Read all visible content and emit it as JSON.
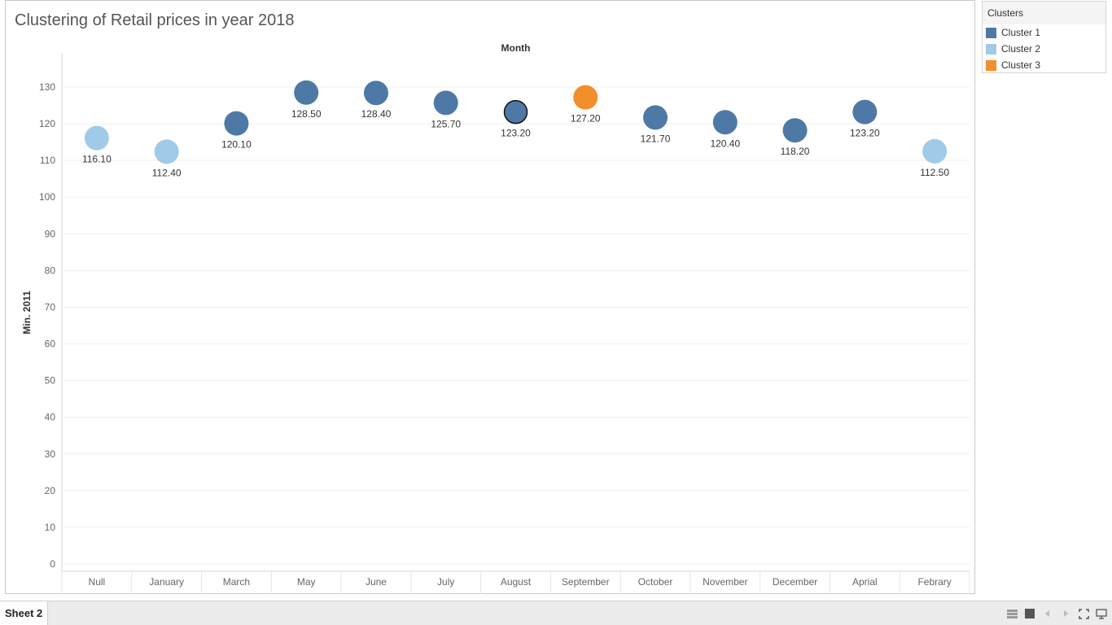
{
  "title": "Clustering of Retail prices in year 2018",
  "legend": {
    "title": "Clusters",
    "items": [
      {
        "label": "Cluster 1",
        "color": "#4e79a7"
      },
      {
        "label": "Cluster 2",
        "color": "#a0cbe8"
      },
      {
        "label": "Cluster 3",
        "color": "#f28e2b"
      }
    ]
  },
  "bottom_bar": {
    "sheet_tab": "Sheet 2",
    "icons": [
      "show-sheets-icon",
      "filmstrip-icon",
      "previous-icon",
      "next-icon",
      "fit-to-screen-icon",
      "presentation-mode-icon"
    ]
  },
  "chart_data": {
    "type": "scatter",
    "title": "Clustering of Retail prices in year 2018",
    "header": "Month",
    "ylabel": "Min. 2011",
    "ylim": [
      0,
      138
    ],
    "yticks": [
      0,
      10,
      20,
      30,
      40,
      50,
      60,
      70,
      80,
      90,
      100,
      110,
      120,
      130
    ],
    "grid": true,
    "categories": [
      "Null",
      "January",
      "March",
      "May",
      "June",
      "July",
      "August",
      "September",
      "October",
      "November",
      "December",
      "Aprial",
      "Febrary"
    ],
    "values": [
      116.1,
      112.4,
      120.1,
      128.5,
      128.4,
      125.7,
      123.2,
      127.2,
      121.7,
      120.4,
      118.2,
      123.2,
      112.5
    ],
    "value_labels": [
      "116.10",
      "112.40",
      "120.10",
      "128.50",
      "128.40",
      "125.70",
      "123.20",
      "127.20",
      "121.70",
      "120.40",
      "118.20",
      "123.20",
      "112.50"
    ],
    "clusters": [
      "Cluster 2",
      "Cluster 2",
      "Cluster 1",
      "Cluster 1",
      "Cluster 1",
      "Cluster 1",
      "Cluster 1",
      "Cluster 3",
      "Cluster 1",
      "Cluster 1",
      "Cluster 1",
      "Cluster 1",
      "Cluster 2"
    ],
    "selected": "August",
    "legend_position": "right"
  }
}
